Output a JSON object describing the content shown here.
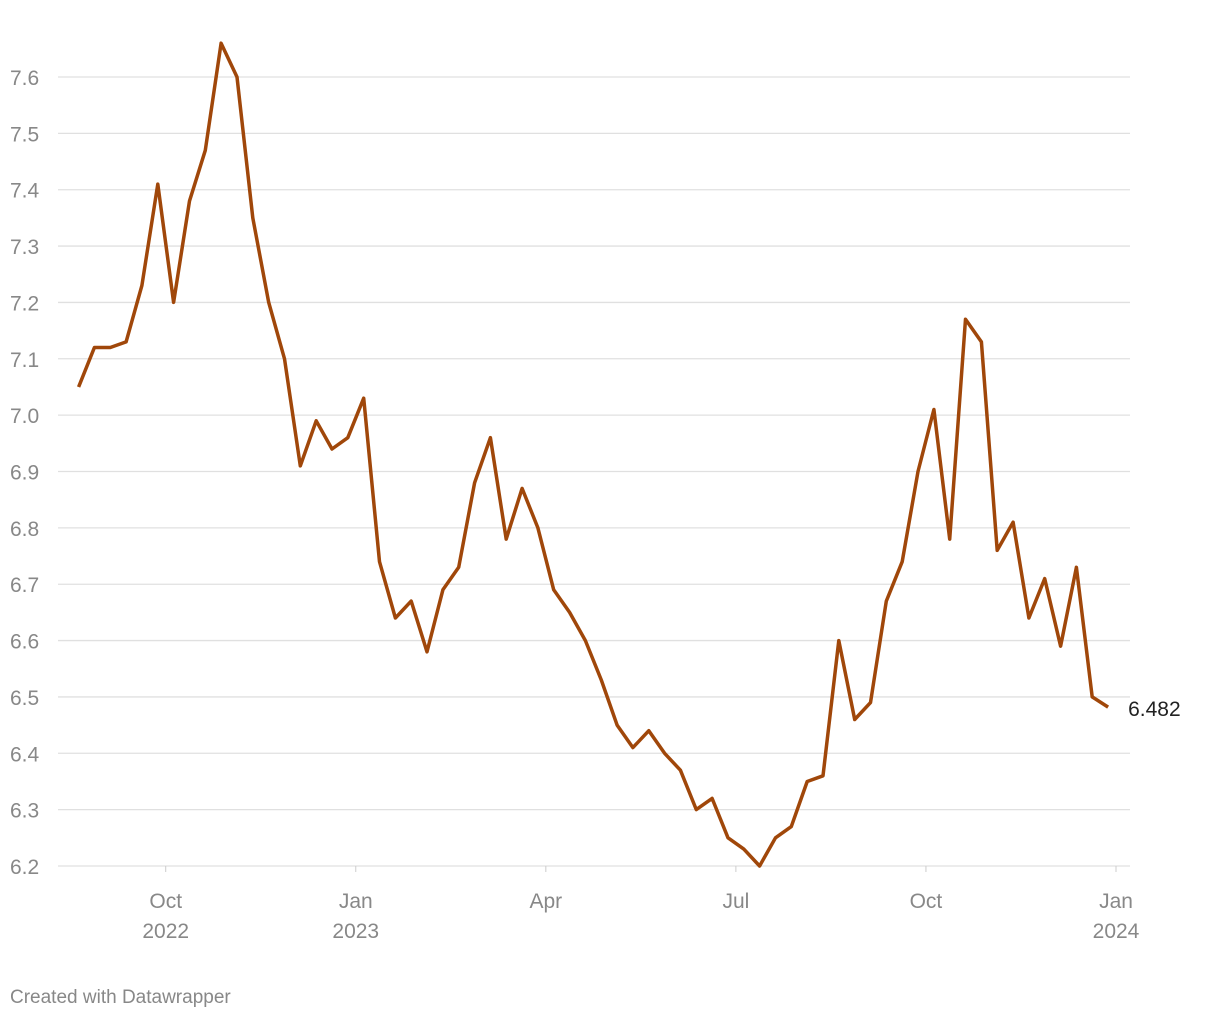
{
  "chart_data": {
    "type": "line",
    "x": [
      "2022-08",
      "2022-08",
      "2022-08",
      "2022-08",
      "2022-09",
      "2022-09",
      "2022-09",
      "2022-09",
      "2022-10",
      "2022-10",
      "2022-10",
      "2022-10",
      "2022-11",
      "2022-11",
      "2022-11",
      "2022-11",
      "2022-12",
      "2022-12",
      "2022-12",
      "2022-12",
      "2023-01",
      "2023-01",
      "2023-01",
      "2023-01",
      "2023-02",
      "2023-02",
      "2023-02",
      "2023-02",
      "2023-03",
      "2023-03",
      "2023-03",
      "2023-03",
      "2023-04",
      "2023-04",
      "2023-04",
      "2023-04",
      "2023-05",
      "2023-05",
      "2023-05",
      "2023-05",
      "2023-06",
      "2023-06",
      "2023-06",
      "2023-06",
      "2023-07",
      "2023-07",
      "2023-07",
      "2023-07",
      "2023-08",
      "2023-08",
      "2023-08",
      "2023-08",
      "2023-09",
      "2023-09",
      "2023-09",
      "2023-09",
      "2023-10",
      "2023-10",
      "2023-10",
      "2023-10",
      "2023-11",
      "2023-11",
      "2023-11",
      "2023-11",
      "2023-12",
      "2023-12",
      "2023-12",
      "2023-12"
    ],
    "values": [
      null,
      null,
      7.05,
      7.12,
      7.12,
      7.13,
      7.23,
      7.41,
      7.2,
      7.38,
      7.47,
      7.66,
      7.6,
      7.35,
      7.2,
      7.1,
      6.91,
      6.99,
      6.94,
      6.96,
      7.03,
      6.74,
      6.64,
      6.67,
      6.58,
      6.69,
      6.73,
      6.88,
      6.96,
      6.78,
      6.87,
      6.8,
      6.69,
      6.65,
      6.6,
      6.53,
      6.45,
      6.41,
      6.44,
      6.4,
      6.37,
      6.3,
      6.32,
      6.25,
      6.23,
      6.2,
      6.25,
      6.27,
      6.35,
      6.36,
      6.6,
      6.46,
      6.49,
      6.67,
      6.74,
      6.9,
      7.01,
      6.78,
      7.17,
      7.13,
      6.76,
      6.81,
      6.64,
      6.71,
      6.59,
      6.73,
      6.5,
      6.482
    ],
    "color": "#a0470a",
    "xlim": [
      "2022-08",
      "2024-01"
    ],
    "xticks": [
      {
        "value": "2022-10",
        "label": "Oct 2022"
      },
      {
        "value": "2023-01",
        "label": "Jan 2023"
      },
      {
        "value": "2023-04",
        "label": "Apr"
      },
      {
        "value": "2023-07",
        "label": "Jul"
      },
      {
        "value": "2023-10",
        "label": "Oct"
      },
      {
        "value": "2024-01",
        "label": "Jan 2024"
      }
    ],
    "ylim": [
      6.2,
      7.6
    ],
    "yticks": [
      6.2,
      6.3,
      6.4,
      6.5,
      6.6,
      6.7,
      6.8,
      6.9,
      {
        "value": 7,
        "label": "7.0"
      },
      7.1,
      7.2,
      7.3,
      7.4,
      7.5,
      7.6
    ],
    "grid": true,
    "credit": "Created with Datawrapper"
  }
}
